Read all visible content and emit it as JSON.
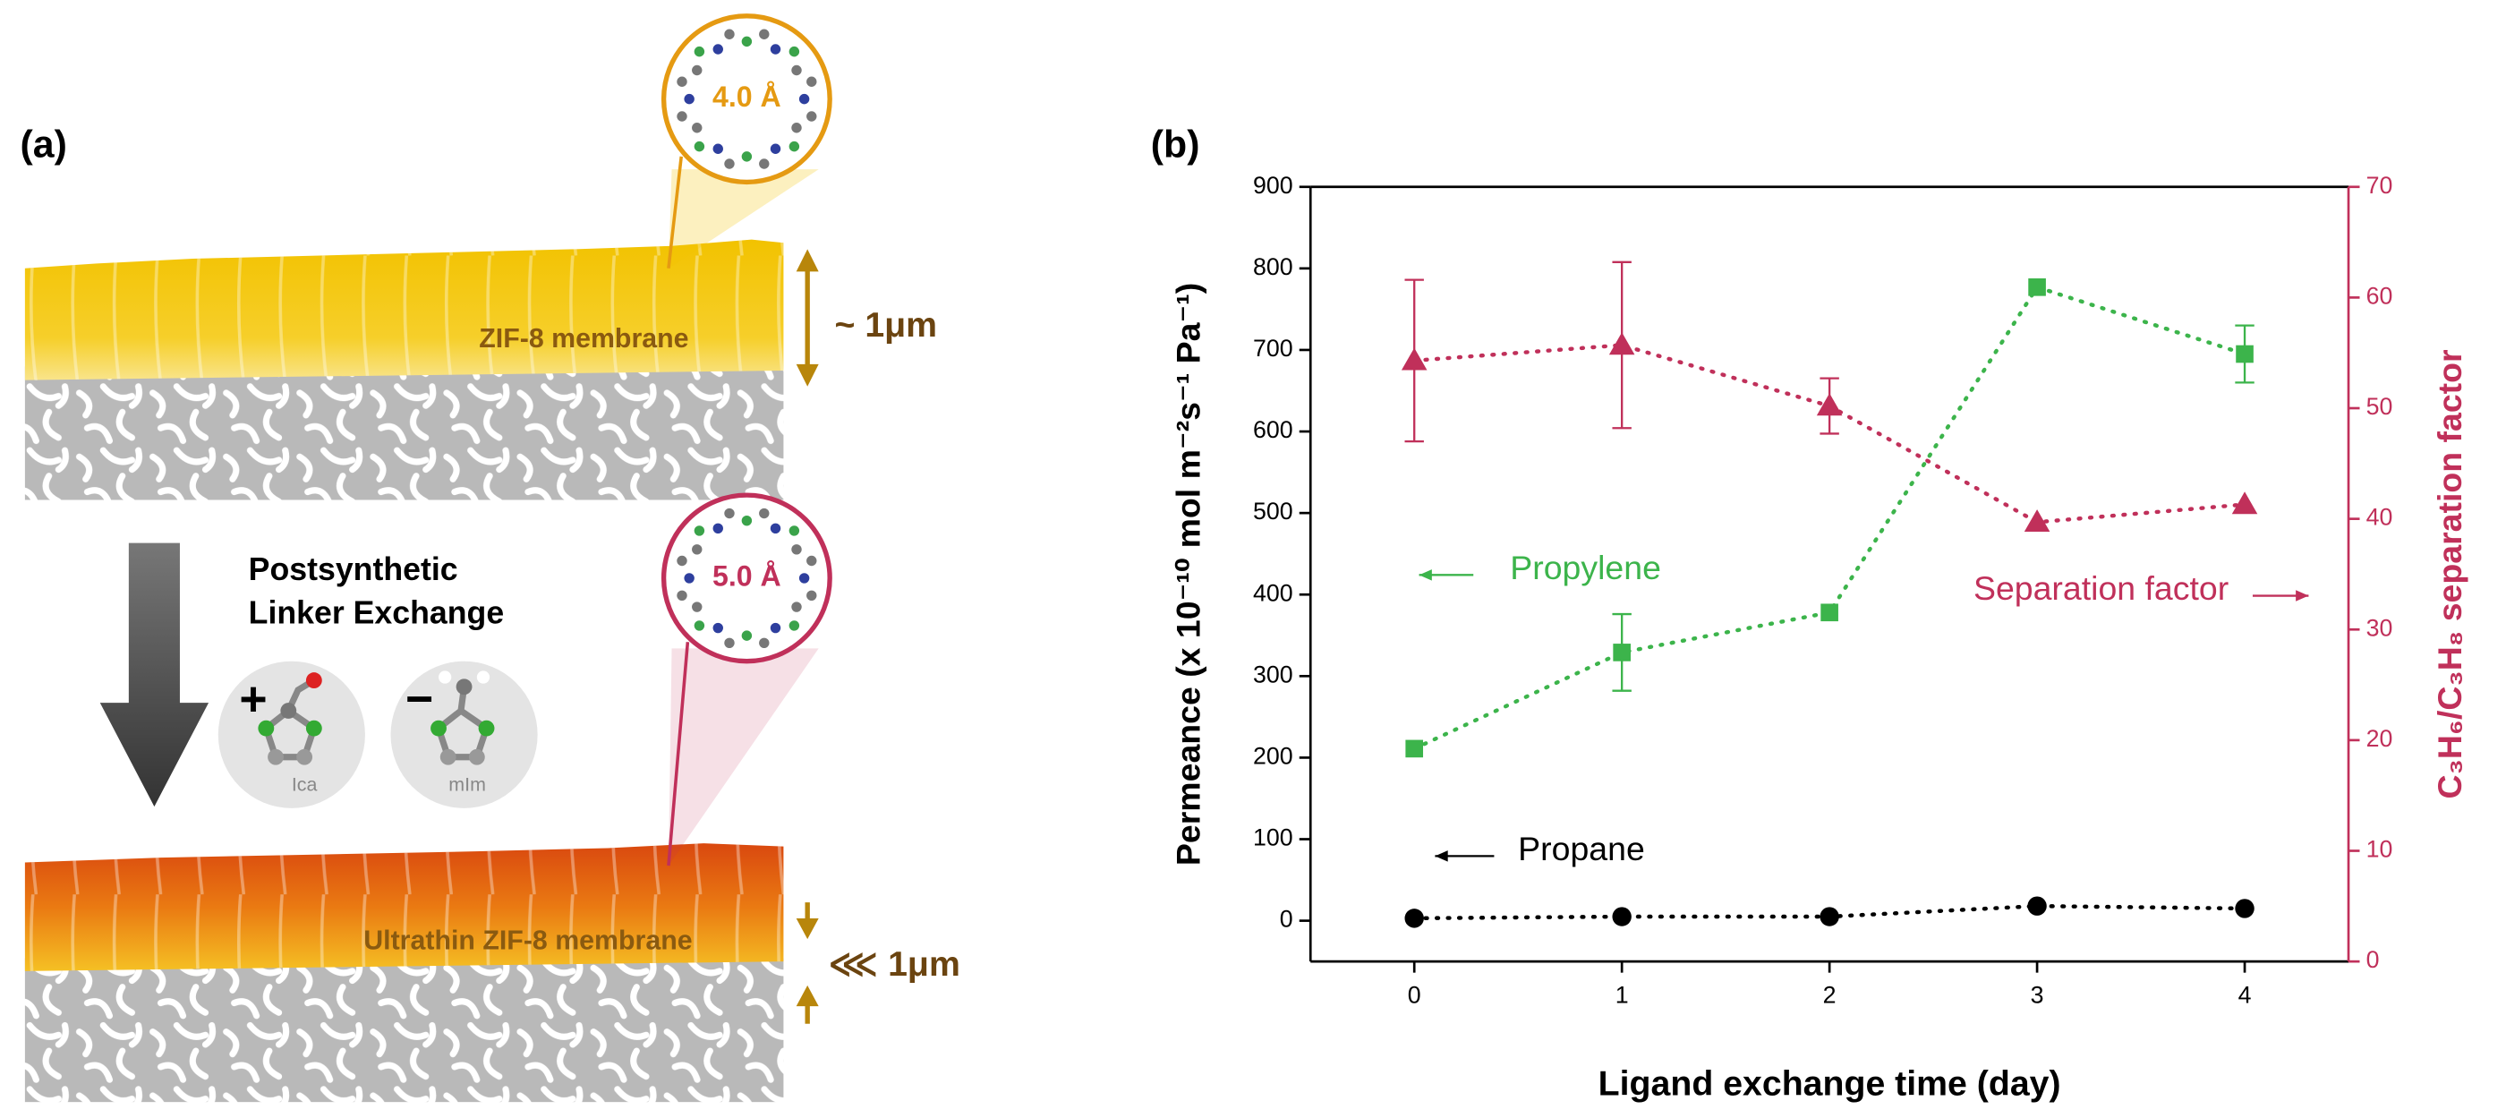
{
  "panel_a": {
    "label": "(a)",
    "pore_top": "4.0 Å",
    "membrane_top": "ZIF-8 membrane",
    "thickness_top": "~ 1μm",
    "process": [
      "Postsynthetic",
      "Linker Exchange"
    ],
    "add_sign": "+",
    "remove_sign": "−",
    "linker_add": "Ica",
    "linker_remove": "mIm",
    "pore_bottom": "5.0 Å",
    "membrane_bottom": "Ultrathin ZIF-8 membrane",
    "thickness_bottom": "⋘ 1μm"
  },
  "chart_data": {
    "type": "line",
    "label": "(b)",
    "xlabel": "Ligand exchange time (day)",
    "ylabel": "Permeance (x 10⁻¹⁰ mol m⁻²s⁻¹ Pa⁻¹)",
    "y2label": "C₃H₆/C₃H₈ separation factor",
    "x": [
      0,
      1,
      2,
      3,
      4
    ],
    "xlim": [
      -0.5,
      4.5
    ],
    "xticks": [
      0,
      1,
      2,
      3,
      4
    ],
    "ylim": [
      -50,
      900
    ],
    "yticks": [
      0,
      100,
      200,
      300,
      400,
      500,
      600,
      700,
      800,
      900
    ],
    "y2lim": [
      0,
      70
    ],
    "y2ticks": [
      0,
      10,
      20,
      30,
      40,
      50,
      60,
      70
    ],
    "series": [
      {
        "name": "Propylene",
        "color": "#3cb44b",
        "marker": "square",
        "values": [
          211,
          329,
          378,
          777,
          695
        ],
        "errors": [
          null,
          47,
          null,
          null,
          35
        ]
      },
      {
        "name": "Propane",
        "color": "#000000",
        "marker": "circle",
        "values": [
          3,
          5,
          5,
          18,
          15
        ]
      },
      {
        "name": "Separation factor",
        "color": "#c0305a",
        "marker": "triangle",
        "axis": "y2",
        "values": [
          54.3,
          55.7,
          50.2,
          39.7,
          41.3
        ],
        "errors": [
          7.3,
          7.5,
          2.5,
          null,
          null
        ]
      }
    ]
  }
}
